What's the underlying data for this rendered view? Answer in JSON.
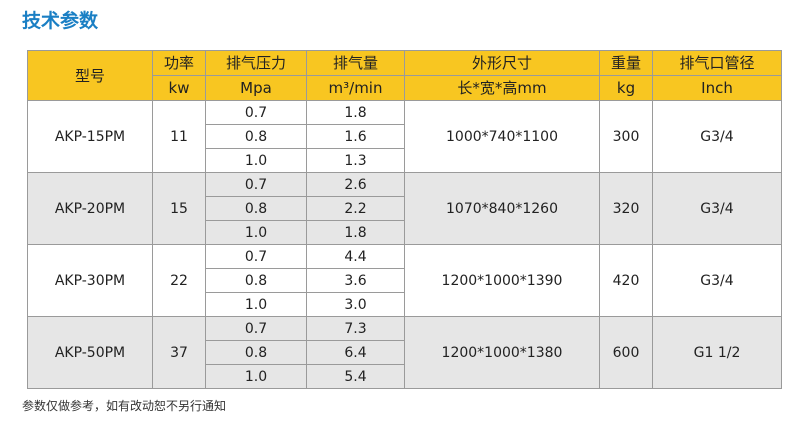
{
  "header": {
    "title": "技术参数"
  },
  "table": {
    "columns": [
      {
        "name": "型号"
      },
      {
        "name": "功率",
        "unit": "kw"
      },
      {
        "name": "排气压力",
        "unit": "Mpa"
      },
      {
        "name": "排气量",
        "unit": "m³/min"
      },
      {
        "name": "外形尺寸",
        "unit": "长*宽*高mm"
      },
      {
        "name": "重量",
        "unit": "kg"
      },
      {
        "name": "排气口管径",
        "unit": "Inch"
      }
    ],
    "groups": [
      {
        "model": "AKP-15PM",
        "power": "11",
        "pressures": [
          "0.7",
          "0.8",
          "1.0"
        ],
        "flows": [
          "1.8",
          "1.6",
          "1.3"
        ],
        "size": "1000*740*1100",
        "weight": "300",
        "port": "G3/4"
      },
      {
        "model": "AKP-20PM",
        "power": "15",
        "pressures": [
          "0.7",
          "0.8",
          "1.0"
        ],
        "flows": [
          "2.6",
          "2.2",
          "1.8"
        ],
        "size": "1070*840*1260",
        "weight": "320",
        "port": "G3/4"
      },
      {
        "model": "AKP-30PM",
        "power": "22",
        "pressures": [
          "0.7",
          "0.8",
          "1.0"
        ],
        "flows": [
          "4.4",
          "3.6",
          "3.0"
        ],
        "size": "1200*1000*1390",
        "weight": "420",
        "port": "G3/4"
      },
      {
        "model": "AKP-50PM",
        "power": "37",
        "pressures": [
          "0.7",
          "0.8",
          "1.0"
        ],
        "flows": [
          "7.3",
          "6.4",
          "5.4"
        ],
        "size": "1200*1000*1380",
        "weight": "600",
        "port": "G1 1/2"
      }
    ]
  },
  "footer": {
    "note": "参数仅做参考，如有改动恕不另行通知"
  }
}
